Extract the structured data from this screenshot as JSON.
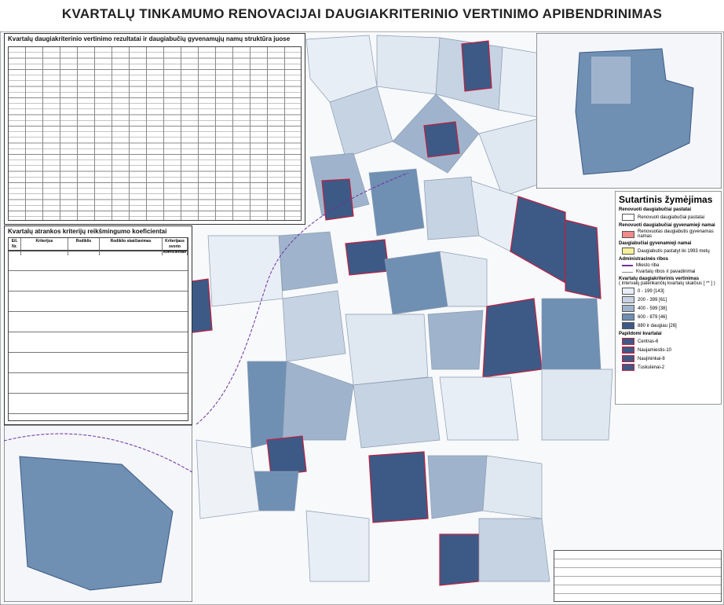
{
  "header": {
    "title": "KVARTALŲ TINKAMUMO RENOVACIJAI DAUGIAKRITERINIO VERTINIMO APIBENDRINIMAS"
  },
  "table1": {
    "title": "Kvartalų daugiakriterinio vertinimo rezultatai ir daugiabučių gyvenamųjų namų struktūra juose"
  },
  "table2": {
    "title": "Kvartalų atrankos kriterijų reikšmingumo koeficientai",
    "columns": [
      "Eil. Nr.",
      "Kriterijus",
      "Rodiklis",
      "Rodiklio skaičiavimas",
      "Kriterijaus svorio koeficientas"
    ]
  },
  "legend": {
    "title": "Sutartinis žymėjimas",
    "renovated_heading": "Renovuoti daugiabučiai pastatai",
    "renovated_item": "Renovuoti daugiabučiai pastatai",
    "renovated_homes_heading": "Renovuoti daugiabučiai gyvenamieji namai",
    "renovated_homes_item": "Renovuotas daugiabutis gyvenamas namas",
    "homes_heading": "Daugiabučiai gyvenamieji namai",
    "homes_item": "Daugiabutis pastatyt iki 1993 metų",
    "admin_heading": "Administracinės ribos",
    "city_border": "Miesto riba",
    "block_borders": "Kvartalų ribos ir pavadinimai",
    "rating_heading": "Kvartalų daugiakriterinis vertinimas",
    "rating_sub": "( intervalų patenkančių kvartalų skaičius [ ** ] )",
    "classes": [
      "0 - 199     [143]",
      "200 - 399   [61]",
      "400 - 599   [38]",
      "600 - 879   [46]",
      "880 ir daugiau   [26]"
    ],
    "extra_heading": "Papildomi kvartalai",
    "extra": [
      "Centras-6",
      "Naujamiestis-10",
      "Naujininkai-8",
      "Tuskulėnai-2"
    ]
  }
}
